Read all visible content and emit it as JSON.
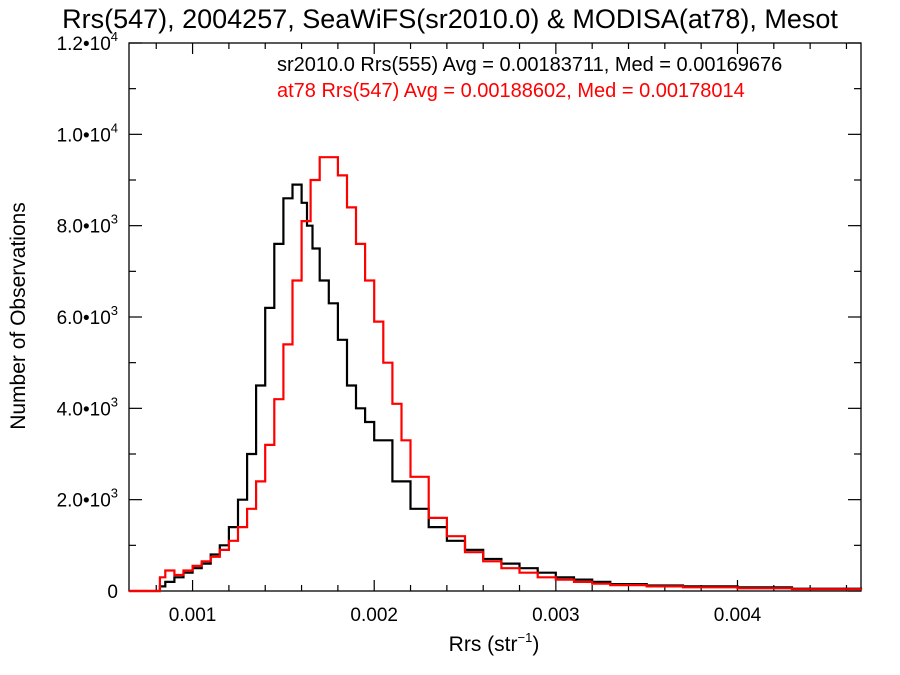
{
  "chart_data": {
    "type": "line",
    "title": "Rrs(547), 2004257, SeaWiFS(sr2010.0) & MODISA(at78), Mesot",
    "xlabel": {
      "main": "Rrs (str",
      "sup": "−1",
      "tail": ")"
    },
    "ylabel": "Number of Observations",
    "xlim": [
      0.00065,
      0.00468
    ],
    "ylim": [
      0,
      12000
    ],
    "grid": false,
    "legend_position": "top-right",
    "x_ticks": [
      {
        "value": 0.001,
        "label": "0.001"
      },
      {
        "value": 0.002,
        "label": "0.002"
      },
      {
        "value": 0.003,
        "label": "0.003"
      },
      {
        "value": 0.004,
        "label": "0.004"
      }
    ],
    "y_ticks": [
      {
        "value": 0,
        "mant": "0",
        "exp": ""
      },
      {
        "value": 2000,
        "mant": "2.0•10",
        "exp": "3"
      },
      {
        "value": 4000,
        "mant": "4.0•10",
        "exp": "3"
      },
      {
        "value": 6000,
        "mant": "6.0•10",
        "exp": "3"
      },
      {
        "value": 8000,
        "mant": "8.0•10",
        "exp": "3"
      },
      {
        "value": 10000,
        "mant": "1.0•10",
        "exp": "4"
      },
      {
        "value": 12000,
        "mant": "1.2•10",
        "exp": "4"
      }
    ],
    "series": [
      {
        "legend": "sr2010.0 Rrs(555) Avg = 0.00183711, Med = 0.00169676",
        "color": "#000000",
        "x": [
          0.00065,
          0.0008,
          0.00082,
          0.00085,
          0.0009,
          0.00095,
          0.001,
          0.00105,
          0.0011,
          0.00115,
          0.0012,
          0.00125,
          0.0013,
          0.00135,
          0.0014,
          0.00145,
          0.0015,
          0.00155,
          0.0016,
          0.00163,
          0.00166,
          0.0017,
          0.00175,
          0.0018,
          0.00185,
          0.0019,
          0.00195,
          0.002,
          0.0021,
          0.0022,
          0.0023,
          0.0024,
          0.0025,
          0.0026,
          0.0027,
          0.0028,
          0.0029,
          0.003,
          0.0031,
          0.0032,
          0.0033,
          0.0035,
          0.0037,
          0.004,
          0.0043,
          0.00468
        ],
        "y": [
          0,
          0,
          100,
          200,
          300,
          400,
          500,
          600,
          800,
          1000,
          1400,
          2000,
          3000,
          4500,
          6200,
          7600,
          8600,
          8900,
          8500,
          8000,
          7500,
          6800,
          6300,
          5500,
          4500,
          4000,
          3700,
          3300,
          2400,
          1800,
          1400,
          1100,
          900,
          700,
          600,
          500,
          400,
          300,
          250,
          200,
          150,
          120,
          100,
          80,
          50,
          30
        ]
      },
      {
        "legend": "at78 Rrs(547) Avg = 0.00188602, Med = 0.00178014",
        "color": "#ff0000",
        "x": [
          0.00065,
          0.0008,
          0.00082,
          0.00085,
          0.0009,
          0.00095,
          0.001,
          0.00105,
          0.0011,
          0.00115,
          0.0012,
          0.00125,
          0.0013,
          0.00135,
          0.0014,
          0.00145,
          0.0015,
          0.00155,
          0.0016,
          0.00165,
          0.0017,
          0.00175,
          0.0018,
          0.00185,
          0.0019,
          0.00195,
          0.002,
          0.00205,
          0.0021,
          0.00215,
          0.0022,
          0.0023,
          0.0024,
          0.0025,
          0.0026,
          0.0027,
          0.0028,
          0.0029,
          0.003,
          0.0031,
          0.0032,
          0.0033,
          0.0035,
          0.0037,
          0.004,
          0.0043,
          0.00468
        ],
        "y": [
          0,
          0,
          300,
          450,
          350,
          450,
          550,
          650,
          750,
          900,
          1100,
          1400,
          1800,
          2400,
          3200,
          4200,
          5400,
          6800,
          8100,
          9000,
          9500,
          9500,
          9100,
          8400,
          7600,
          6800,
          5900,
          5000,
          4100,
          3300,
          2500,
          1600,
          1200,
          850,
          650,
          500,
          400,
          300,
          250,
          200,
          160,
          130,
          100,
          80,
          60,
          40,
          30
        ]
      }
    ]
  }
}
